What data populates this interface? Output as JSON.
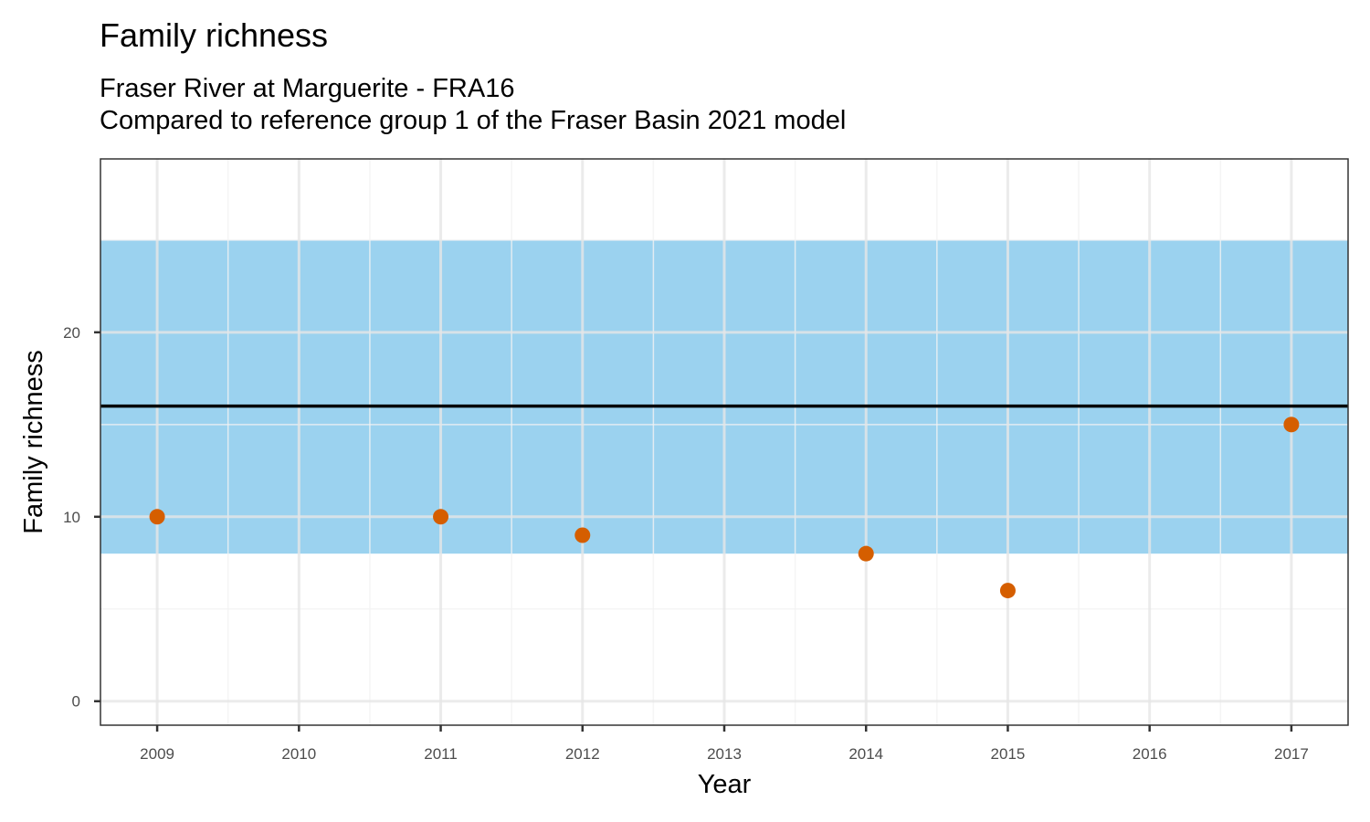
{
  "chart_data": {
    "type": "scatter",
    "title": "Family richness",
    "subtitle_lines": [
      "Fraser River at Marguerite - FRA16",
      "Compared to reference group 1 of the Fraser Basin 2021 model"
    ],
    "xlabel": "Year",
    "ylabel": "Family richness",
    "x_ticks": [
      2009,
      2010,
      2011,
      2012,
      2013,
      2014,
      2015,
      2016,
      2017
    ],
    "y_ticks": [
      0,
      10,
      20
    ],
    "xlim": [
      2008.6,
      2017.4
    ],
    "ylim": [
      -1.3,
      29.4
    ],
    "grid": true,
    "reference_band": {
      "ymin": 8,
      "ymax": 25
    },
    "reference_line": {
      "y": 16
    },
    "points": [
      {
        "x": 2009,
        "y": 10
      },
      {
        "x": 2011,
        "y": 10
      },
      {
        "x": 2012,
        "y": 9
      },
      {
        "x": 2014,
        "y": 8
      },
      {
        "x": 2015,
        "y": 6
      },
      {
        "x": 2017,
        "y": 15
      }
    ],
    "colors": {
      "band": "#9bd2ef",
      "line": "#000000",
      "points": "#d55e00",
      "grid_major": "#e6e6e6",
      "grid_minor": "#f2f2f2",
      "border": "#333333",
      "tick_text": "#4d4d4d"
    }
  }
}
